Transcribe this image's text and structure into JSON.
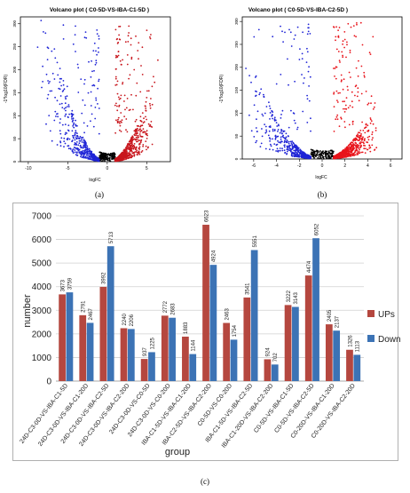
{
  "chart_data": [
    {
      "type": "scatter",
      "title": "Volcano plot ( C0-5D-VS-IBA-C1-5D )",
      "xlabel": "logFC",
      "ylabel": "-1*log10(FDR)",
      "xlim": [
        -11,
        8
      ],
      "ylim": [
        0,
        315
      ],
      "x_ticks": [
        "-10",
        "-5",
        "0",
        "5"
      ],
      "y_ticks": [
        "0",
        "50",
        "100",
        "150",
        "200",
        "250",
        "300"
      ],
      "series": [
        {
          "name": "",
          "color": "#1f24d6",
          "kind": "down"
        },
        {
          "name": "",
          "color": "#000000",
          "kind": "ns"
        },
        {
          "name": "",
          "color": "#c8161d",
          "kind": "up"
        }
      ],
      "panel_label": "(a)"
    },
    {
      "type": "scatter",
      "title": "Volcano plot ( C0-5D-VS-IBA-C2-5D )",
      "xlabel": "logFC",
      "ylabel": "-1*log10(FDR)",
      "xlim": [
        -7,
        7
      ],
      "ylim": [
        0,
        310
      ],
      "x_ticks": [
        "-6",
        "-4",
        "-2",
        "0",
        "2",
        "4",
        "6"
      ],
      "y_ticks": [
        "0",
        "50",
        "100",
        "150",
        "200",
        "250",
        "300"
      ],
      "series": [
        {
          "name": "",
          "color": "#1f24d6",
          "kind": "down"
        },
        {
          "name": "",
          "color": "#000000",
          "kind": "ns"
        },
        {
          "name": "",
          "color": "#e8141b",
          "kind": "up"
        }
      ],
      "panel_label": "(b)"
    },
    {
      "type": "bar",
      "xlabel": "group",
      "ylabel": "number",
      "ylim": [
        0,
        7000
      ],
      "y_ticks": [
        "0",
        "1000",
        "2000",
        "3000",
        "4000",
        "5000",
        "6000",
        "7000"
      ],
      "categories": [
        "24D-C3-0D-VS-IBA-C1-5D",
        "24D-C3-0D-VS-IBA-C1-20D",
        "24D-C3-0D-VS-IBA-C2-5D",
        "24D-C3-0D-VS-IBA-C2-20D",
        "24D-C3-0D-VS-C0-5D",
        "24D-C3-0D-VS-C0-20D",
        "IBA-C1-5D-VS-IBA-C1-20D",
        "IBA-C2-5D-VS-IBA-C2-20D",
        "C0-5D-VS-C0-20D",
        "IBA-C1-5D-VS-IBA-C2-5D",
        "IBA-C1-20D-VS-IBA-C2-20D",
        "C0-5D-VS-IBA-C1-5D",
        "C0-5D-VS-IBA-C2-5D",
        "C0-20D-VS-IBA-C1-20D",
        "C0-20D-VS-IBA-C2-20D"
      ],
      "series": [
        {
          "name": "UPs",
          "color": "#b5473f",
          "values": [
            3673,
            2791,
            3992,
            2240,
            937,
            2772,
            1883,
            6623,
            2463,
            3541,
            924,
            3222,
            4474,
            2405,
            1326
          ]
        },
        {
          "name": "Down",
          "color": "#3c73b5",
          "values": [
            3759,
            2467,
            5713,
            2206,
            1225,
            2683,
            1144,
            4924,
            1754,
            5551,
            702,
            3143,
            6052,
            2137,
            1113
          ]
        }
      ],
      "legend_position": "right",
      "grid": true,
      "panel_label": "(c)"
    }
  ]
}
